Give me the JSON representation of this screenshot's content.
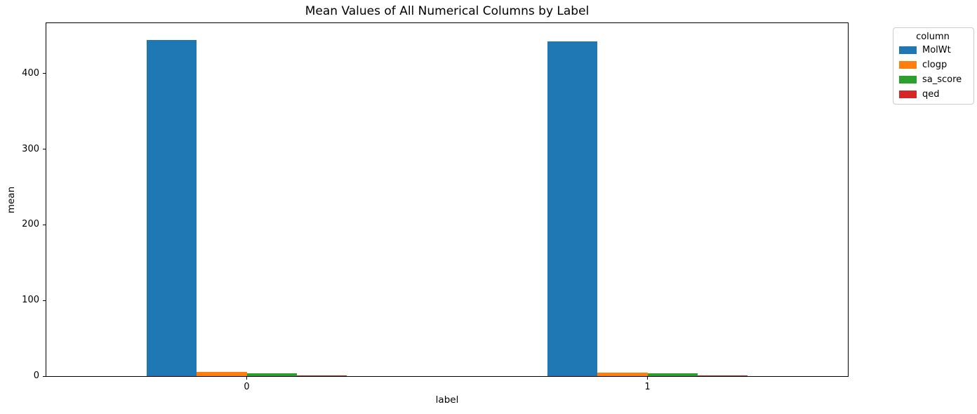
{
  "figure": {
    "background": "#ffffff",
    "spine_color": "#000000"
  },
  "chart_data": {
    "type": "bar",
    "title": "Mean Values of All Numerical Columns by Label",
    "xlabel": "label",
    "ylabel": "mean",
    "categories": [
      "0",
      "1"
    ],
    "series": [
      {
        "name": "MolWt",
        "color": "#1f77b4",
        "values": [
          444.5,
          442.9
        ]
      },
      {
        "name": "clogp",
        "color": "#ff7f0e",
        "values": [
          5.2,
          4.8
        ]
      },
      {
        "name": "sa_score",
        "color": "#2ca02c",
        "values": [
          4.1,
          4.0
        ]
      },
      {
        "name": "qed",
        "color": "#d62728",
        "values": [
          0.65,
          0.64
        ]
      }
    ],
    "yticks": [
      0,
      100,
      200,
      300,
      400
    ],
    "ylim": [
      0,
      466.8
    ],
    "grid": false,
    "bar_group_width_fraction": 0.5,
    "legend": {
      "title": "column",
      "position": "outside-upper-right",
      "entries": [
        "MolWt",
        "clogp",
        "sa_score",
        "qed"
      ]
    }
  }
}
